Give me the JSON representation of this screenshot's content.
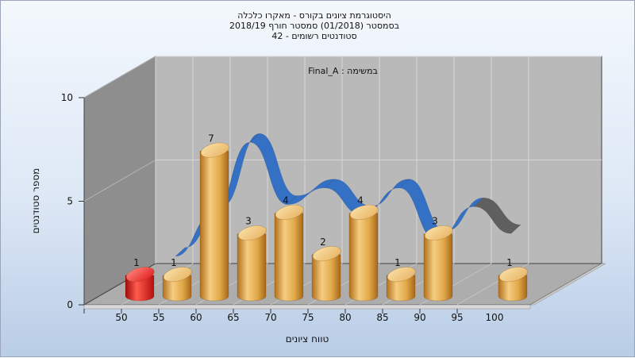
{
  "chart_data": {
    "type": "bar",
    "title_lines": [
      "היסטוגרמת ציונים בקורס - מאקרו כלכלה",
      "בסמסטר  (01/2018)  סמסטר חורף 2018/19",
      "סטודנטים רשומים - 42"
    ],
    "task_label": "במשימה : Final_A",
    "xlabel": "טווח ציונים",
    "ylabel": "מספר סטודנטים",
    "ylim": [
      0,
      10
    ],
    "y_ticks": [
      "0",
      "5",
      "10"
    ],
    "x_ticks": [
      "50",
      "55",
      "60",
      "65",
      "70",
      "75",
      "80",
      "85",
      "90",
      "95",
      "100"
    ],
    "bars": [
      {
        "x": 50,
        "value": 1,
        "label": "1",
        "color": "red"
      },
      {
        "x": 55,
        "value": 1,
        "label": "1",
        "color": "gold"
      },
      {
        "x": 60,
        "value": 7,
        "label": "7",
        "color": "gold"
      },
      {
        "x": 65,
        "value": 3,
        "label": "3",
        "color": "gold"
      },
      {
        "x": 70,
        "value": 4,
        "label": "4",
        "color": "gold"
      },
      {
        "x": 75,
        "value": 2,
        "label": "2",
        "color": "gold"
      },
      {
        "x": 80,
        "value": 4,
        "label": "4",
        "color": "gold"
      },
      {
        "x": 85,
        "value": 1,
        "label": "1",
        "color": "gold"
      },
      {
        "x": 90,
        "value": 3,
        "label": "3",
        "color": "gold"
      },
      {
        "x": 100,
        "value": 1,
        "label": "1",
        "color": "gold"
      }
    ],
    "curve": {
      "x": [
        55,
        60,
        65,
        70,
        75,
        80,
        85,
        90,
        95,
        100
      ],
      "values": [
        1.5,
        3.5,
        7,
        4,
        4.8,
        3.5,
        4.8,
        2.3,
        3.9,
        2.6
      ],
      "segment_colors": [
        "#3470c4",
        "#3470c4",
        "#3470c4",
        "#3470c4",
        "#3470c4",
        "#3470c4",
        "#3470c4",
        "#3470c4",
        "#5f5f5f"
      ]
    },
    "colors": {
      "red": "#e0191b",
      "gold": "#e0a848",
      "back_wall": "#b9b9b9",
      "side_wall": "#8e8e8e",
      "floor": "#adadad"
    }
  }
}
